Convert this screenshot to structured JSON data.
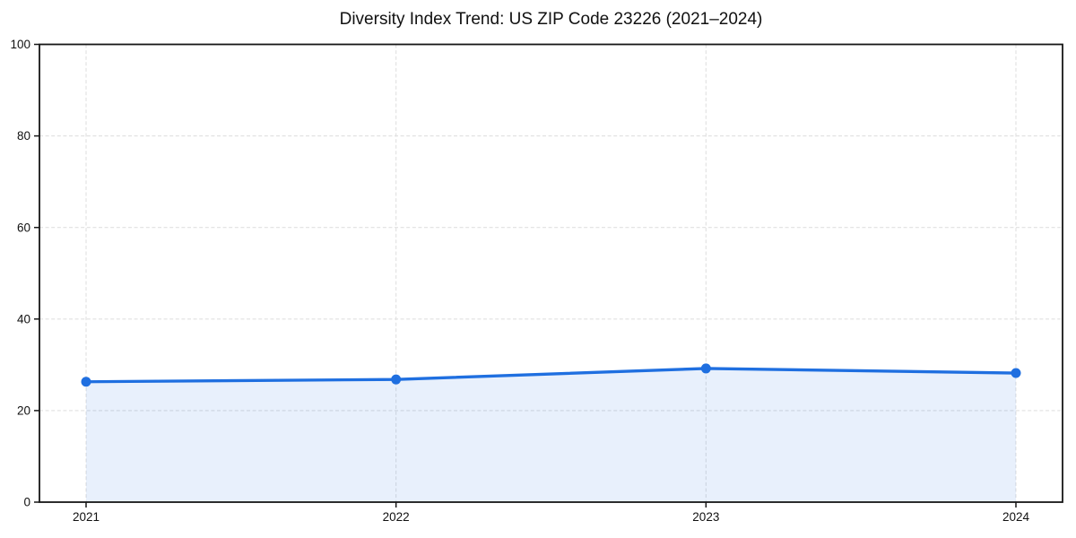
{
  "title": "Diversity Index Trend: US ZIP Code 23226 (2021–2024)",
  "chart_data": {
    "type": "line",
    "title": "Diversity Index Trend: US ZIP Code 23226 (2021–2024)",
    "categories": [
      "2021",
      "2022",
      "2023",
      "2024"
    ],
    "series": [
      {
        "name": "Diversity Index",
        "values": [
          26.3,
          26.8,
          29.2,
          28.2
        ],
        "marker": "circle",
        "area_fill": true
      }
    ],
    "xlabel": "",
    "ylabel": "",
    "ylim": [
      0,
      100
    ],
    "yticks": [
      0,
      20,
      40,
      60,
      80,
      100
    ],
    "grid": true,
    "grid_style": "dashed",
    "legend_position": "none",
    "colors": {
      "line": "#1f6fe0",
      "marker": "#1f6fe0",
      "area_fill": "#1f6fe0",
      "area_fill_opacity": 0.1,
      "grid": "#e0e0e0",
      "axis": "#161616",
      "text": "#111111",
      "background": "#ffffff"
    }
  }
}
